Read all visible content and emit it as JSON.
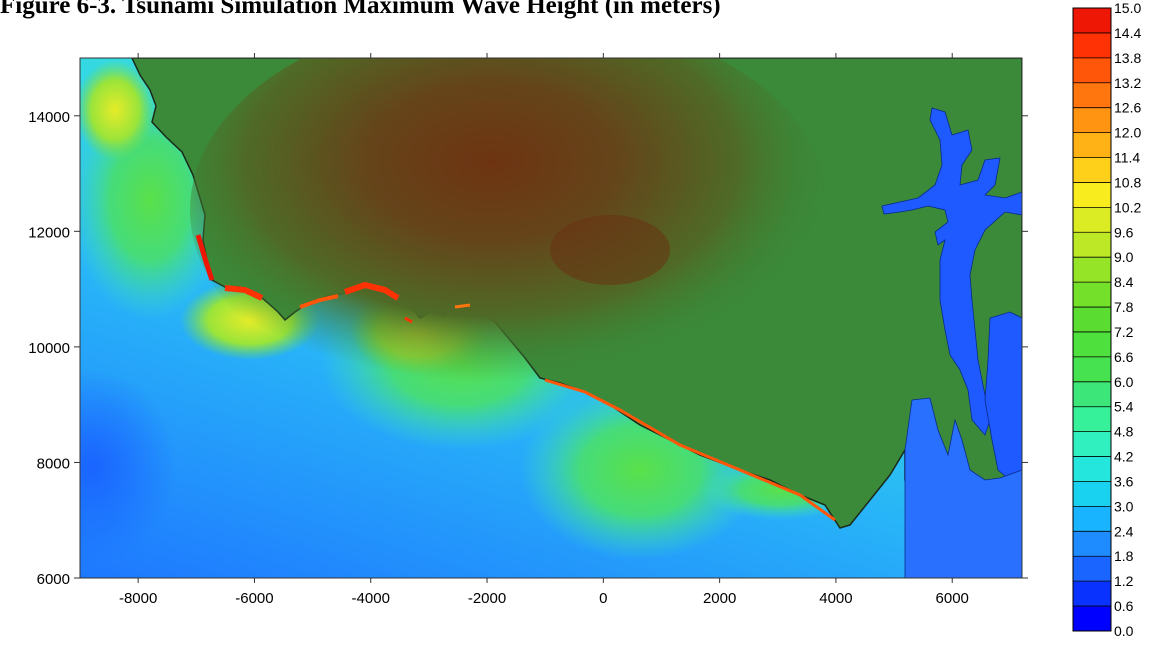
{
  "figure": {
    "title": "Figure 6-3. Tsunami Simulation Maximum Wave Height (in meters)"
  },
  "chart_data": {
    "type": "heatmap",
    "title": "Figure 6-3. Tsunami Simulation Maximum Wave Height (in meters)",
    "xlabel": "",
    "ylabel": "",
    "xlim": [
      -9000,
      7200
    ],
    "ylim": [
      6000,
      15000
    ],
    "x_ticks": [
      -8000,
      -6000,
      -4000,
      -2000,
      0,
      2000,
      4000,
      6000
    ],
    "y_ticks": [
      6000,
      8000,
      10000,
      12000,
      14000
    ],
    "x_tick_labels": [
      "-8000",
      "-6000",
      "-4000",
      "-2000",
      "0",
      "2000",
      "4000",
      "6000"
    ],
    "y_tick_labels": [
      "6000",
      "8000",
      "10000",
      "12000",
      "14000"
    ],
    "colorbar": {
      "min": 0.0,
      "max": 15.0,
      "step": 0.6,
      "labels": [
        "15.0",
        "14.4",
        "13.8",
        "13.2",
        "12.6",
        "12.0",
        "11.4",
        "10.8",
        "10.2",
        "9.6",
        "9.0",
        "8.4",
        "7.8",
        "7.2",
        "6.6",
        "6.0",
        "5.4",
        "4.8",
        "4.2",
        "3.6",
        "3.0",
        "2.4",
        "1.8",
        "1.2",
        "0.6",
        "0.0"
      ],
      "colors": [
        "#0000ff",
        "#0a32ff",
        "#1a64ff",
        "#1e8cff",
        "#18b4ff",
        "#18d2f0",
        "#24e6dc",
        "#30f0c0",
        "#36f09a",
        "#3ce678",
        "#46e250",
        "#4ee03c",
        "#5adc30",
        "#74e02a",
        "#96e428",
        "#bce826",
        "#dcec24",
        "#f8ec1e",
        "#ffd01a",
        "#ffb216",
        "#ff9412",
        "#ff760e",
        "#ff560a",
        "#ff3206",
        "#ee1604"
      ]
    },
    "land_color": "#3a8a3a",
    "highland_color": "#7a3a12",
    "water_low_color": "#1e5aff"
  }
}
